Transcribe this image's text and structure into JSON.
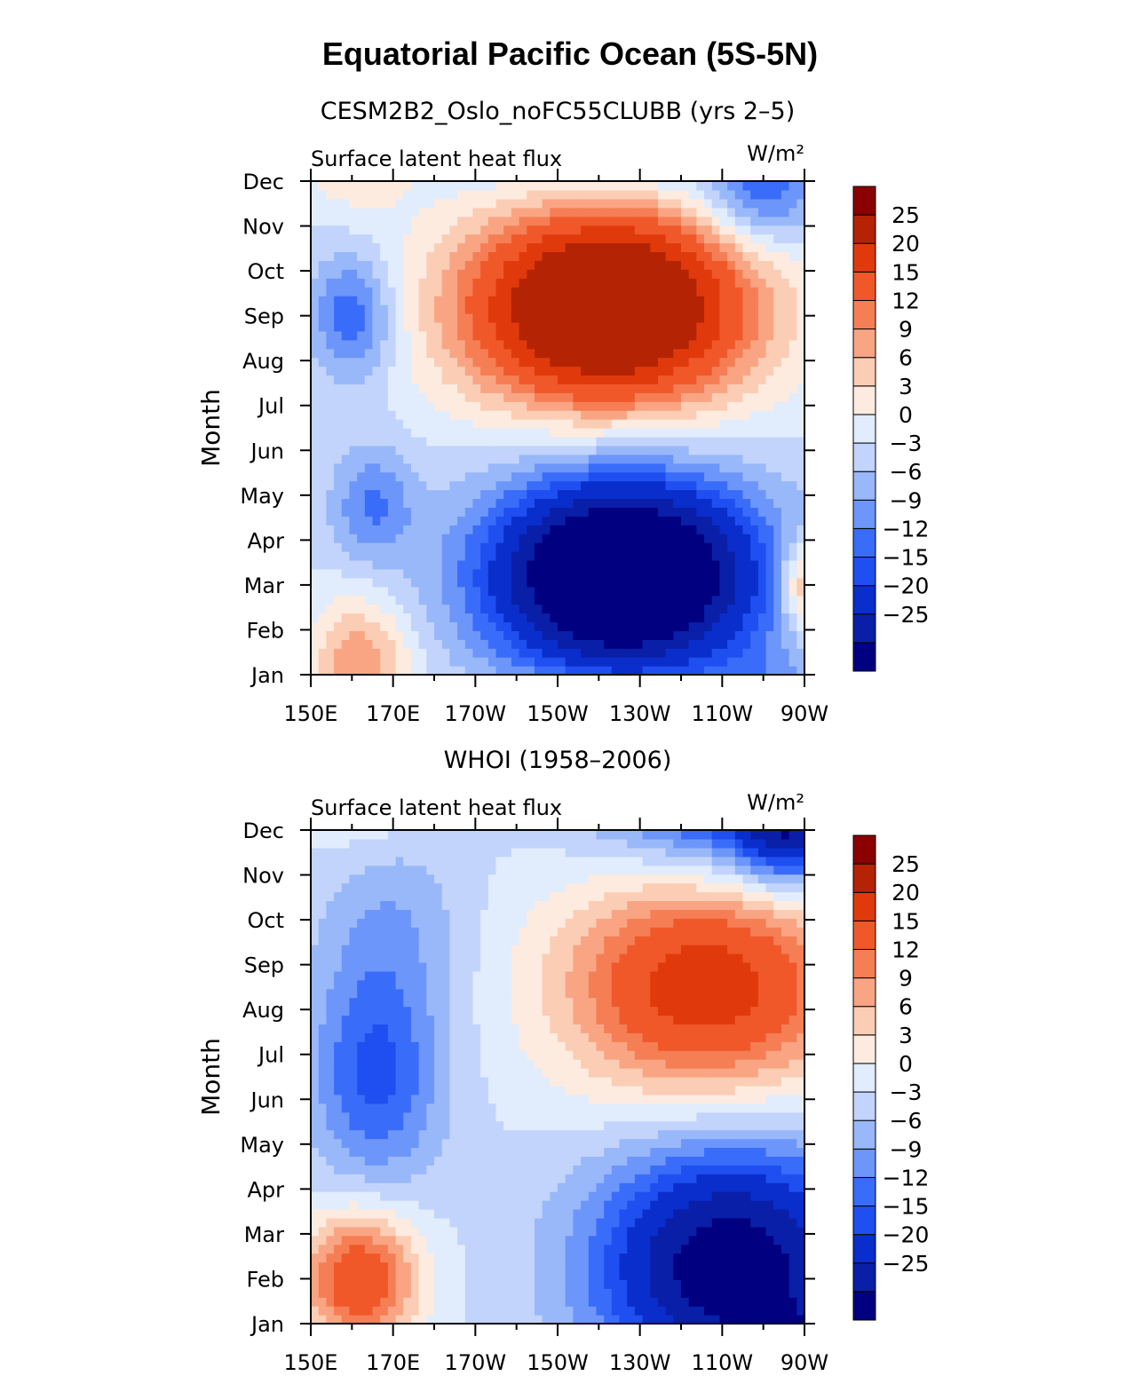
{
  "figure": {
    "title": "Equatorial Pacific Ocean (5S-5N)",
    "colors": {
      "levels": [
        "#000080",
        "#0a1fa8",
        "#0a2ecc",
        "#1f4ff0",
        "#3a6cfa",
        "#6d96fa",
        "#99b8f9",
        "#c2d4fb",
        "#e1ecfc",
        "#fdebe0",
        "#fbcdb4",
        "#f9a583",
        "#f57e55",
        "#f0582a",
        "#e03a0c",
        "#b42404",
        "#8b0000"
      ]
    }
  },
  "chart_data": [
    {
      "type": "heatmap",
      "title": "CESM2B2_Oslo_noFC55CLUBB (yrs 2–5)",
      "variable": "Surface latent heat flux",
      "units": "W/m²",
      "xlabel": "",
      "ylabel": "Month",
      "x_ticks": [
        "150E",
        "170E",
        "170W",
        "150W",
        "130W",
        "110W",
        "90W"
      ],
      "x_values_deg_east": [
        150,
        170,
        190,
        210,
        230,
        250,
        270
      ],
      "y_ticks": [
        "Jan",
        "Feb",
        "Mar",
        "Apr",
        "May",
        "Jun",
        "Jul",
        "Aug",
        "Sep",
        "Oct",
        "Nov",
        "Dec"
      ],
      "colorbar_labels": [
        "25",
        "20",
        "15",
        "12",
        "9",
        "6",
        "3",
        "0",
        "−3",
        "−6",
        "−9",
        "−12",
        "−15",
        "−20",
        "−25"
      ],
      "contour_levels": [
        -25,
        -20,
        -15,
        -12,
        -9,
        -6,
        -3,
        0,
        3,
        6,
        9,
        12,
        15,
        20,
        25
      ],
      "features": [
        {
          "name": "negative-core",
          "lon_center": 226,
          "month_center": 3.2,
          "lon_halfwidth": 32,
          "month_halfwidth": 2.2,
          "amplitude": -42
        },
        {
          "name": "positive-core",
          "lon_center": 222,
          "month_center": 9.2,
          "lon_halfwidth": 34,
          "month_halfwidth": 2.2,
          "amplitude": 40
        },
        {
          "name": "west-late-negative",
          "lon_center": 160,
          "month_center": 9.0,
          "lon_halfwidth": 10,
          "month_halfwidth": 1.4,
          "amplitude": -12
        },
        {
          "name": "west-early-positive",
          "lon_center": 162,
          "month_center": 1.2,
          "lon_halfwidth": 12,
          "month_halfwidth": 1.5,
          "amplitude": 12
        },
        {
          "name": "east-late-negative",
          "lon_center": 260,
          "month_center": 11.8,
          "lon_halfwidth": 14,
          "month_halfwidth": 1.3,
          "amplitude": -12
        },
        {
          "name": "east-early-positive",
          "lon_center": 270,
          "month_center": 3.0,
          "lon_halfwidth": 6,
          "month_halfwidth": 1.0,
          "amplitude": 14
        },
        {
          "name": "west-mid-negative",
          "lon_center": 165,
          "month_center": 4.8,
          "lon_halfwidth": 10,
          "month_halfwidth": 1.3,
          "amplitude": -9
        }
      ]
    },
    {
      "type": "heatmap",
      "title": "WHOI (1958–2006)",
      "variable": "Surface latent heat flux",
      "units": "W/m²",
      "xlabel": "",
      "ylabel": "Month",
      "x_ticks": [
        "150E",
        "170E",
        "170W",
        "150W",
        "130W",
        "110W",
        "90W"
      ],
      "x_values_deg_east": [
        150,
        170,
        190,
        210,
        230,
        250,
        270
      ],
      "y_ticks": [
        "Jan",
        "Feb",
        "Mar",
        "Apr",
        "May",
        "Jun",
        "Jul",
        "Aug",
        "Sep",
        "Oct",
        "Nov",
        "Dec"
      ],
      "colorbar_labels": [
        "25",
        "20",
        "15",
        "12",
        "9",
        "6",
        "3",
        "0",
        "−3",
        "−6",
        "−9",
        "−12",
        "−15",
        "−20",
        "−25"
      ],
      "contour_levels": [
        -25,
        -20,
        -15,
        -12,
        -9,
        -6,
        -3,
        0,
        3,
        6,
        9,
        12,
        15,
        20,
        25
      ],
      "features": [
        {
          "name": "east-early-negative",
          "lon_center": 252,
          "month_center": 2.2,
          "lon_halfwidth": 32,
          "month_halfwidth": 2.8,
          "amplitude": -30
        },
        {
          "name": "east-late-positive",
          "lon_center": 246,
          "month_center": 8.6,
          "lon_halfwidth": 34,
          "month_halfwidth": 2.6,
          "amplitude": 24
        },
        {
          "name": "west-early-positive",
          "lon_center": 162,
          "month_center": 2.0,
          "lon_halfwidth": 14,
          "month_halfwidth": 1.5,
          "amplitude": 20
        },
        {
          "name": "west-mid-negative",
          "lon_center": 166,
          "month_center": 6.6,
          "lon_halfwidth": 16,
          "month_halfwidth": 2.5,
          "amplitude": -13
        },
        {
          "name": "far-east-dec-negative",
          "lon_center": 266,
          "month_center": 12.0,
          "lon_halfwidth": 12,
          "month_halfwidth": 1.2,
          "amplitude": -16
        },
        {
          "name": "west-late-weak-negative",
          "lon_center": 170,
          "month_center": 10.0,
          "lon_halfwidth": 18,
          "month_halfwidth": 2.0,
          "amplitude": -5
        }
      ]
    }
  ]
}
